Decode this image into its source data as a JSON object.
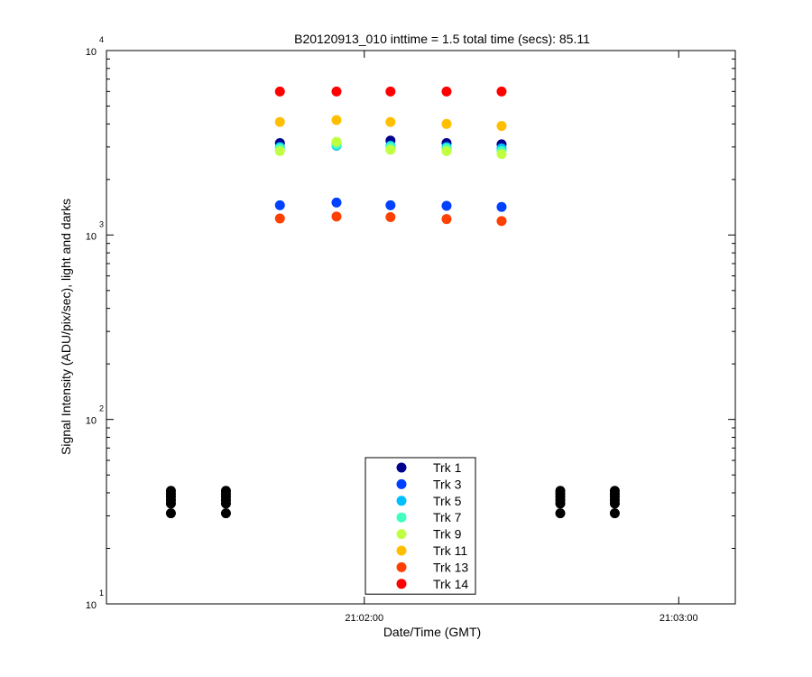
{
  "chart_data": {
    "type": "scatter",
    "title": "B20120913_010 inttime = 1.5 total time (secs): 85.11",
    "xlabel": "Date/Time (GMT)",
    "ylabel": "Signal Intensity (ADU/pix/sec), light and darks",
    "x_tick_labels": [
      "21:02:00",
      "21:03:00"
    ],
    "x_ticks_seconds": [
      0,
      60
    ],
    "xlim_seconds": [
      -49.2,
      70.8
    ],
    "yscale": "log",
    "ylim": [
      10,
      10000
    ],
    "y_tick_labels": [
      {
        "base": "10",
        "exp": "1"
      },
      {
        "base": "10",
        "exp": "2"
      },
      {
        "base": "10",
        "exp": "3"
      },
      {
        "base": "10",
        "exp": "4"
      }
    ],
    "y_tick_values": [
      10,
      100,
      1000,
      10000
    ],
    "grid": false,
    "legend_position": "bottom-center",
    "light_times_seconds": [
      -16.1,
      -5.3,
      5.0,
      15.7,
      26.2
    ],
    "series": [
      {
        "name": "Trk 1",
        "color": "#00008f",
        "values": [
          3150,
          3150,
          3250,
          3150,
          3100
        ]
      },
      {
        "name": "Trk 3",
        "color": "#0040ff",
        "values": [
          1450,
          1500,
          1450,
          1440,
          1420
        ]
      },
      {
        "name": "Trk 5",
        "color": "#00bfff",
        "values": [
          3000,
          3050,
          3050,
          3000,
          2950
        ]
      },
      {
        "name": "Trk 7",
        "color": "#40ffbf",
        "values": [
          2950,
          3100,
          3000,
          2950,
          2850
        ]
      },
      {
        "name": "Trk 9",
        "color": "#bfff40",
        "values": [
          2850,
          3200,
          2900,
          2850,
          2750
        ]
      },
      {
        "name": "Trk 11",
        "color": "#ffbf00",
        "values": [
          4100,
          4200,
          4100,
          4000,
          3900
        ]
      },
      {
        "name": "Trk 13",
        "color": "#ff4000",
        "values": [
          1230,
          1260,
          1250,
          1220,
          1190
        ]
      },
      {
        "name": "Trk 14",
        "color": "#ff0000",
        "values": [
          6000,
          6000,
          6000,
          6000,
          6000
        ]
      }
    ],
    "darks": {
      "color": "#000000",
      "x_seconds": [
        -36.9,
        -26.4,
        37.4,
        47.8
      ],
      "values": [
        [
          31,
          35,
          36.5,
          38,
          39.5,
          41
        ],
        [
          31,
          35,
          36.5,
          38,
          39.5,
          41
        ],
        [
          31,
          35,
          36.5,
          38,
          39.5,
          41
        ],
        [
          31,
          35,
          36.5,
          38,
          39.5,
          41
        ]
      ]
    }
  }
}
